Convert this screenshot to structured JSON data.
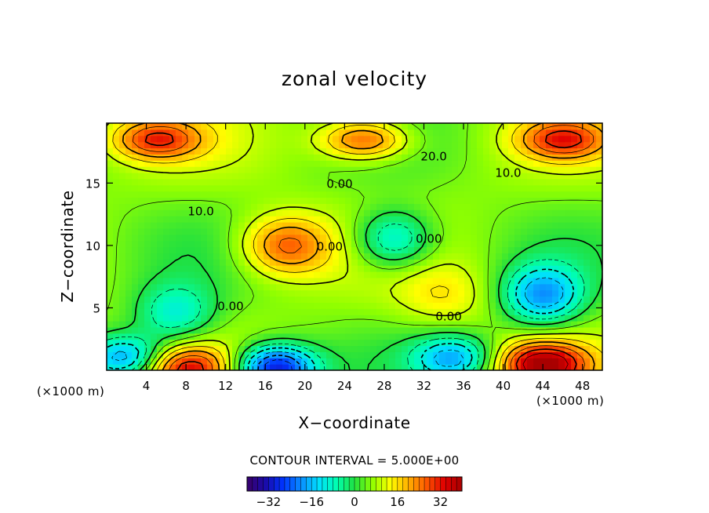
{
  "chart_data": {
    "type": "heatmap",
    "title": "zonal velocity",
    "xlabel": "X−coordinate",
    "ylabel": "Z−coordinate",
    "x_unit_left": "(×1000 m)",
    "x_unit_right": "(×1000 m)",
    "xlim": [
      0,
      50
    ],
    "ylim": [
      0,
      19.8
    ],
    "x_ticks": [
      "4",
      "8",
      "12",
      "16",
      "20",
      "24",
      "28",
      "32",
      "36",
      "40",
      "44",
      "48"
    ],
    "y_ticks": [
      "5",
      "10",
      "15"
    ],
    "x_tick_values": [
      4,
      8,
      12,
      16,
      20,
      24,
      28,
      32,
      36,
      40,
      44,
      48
    ],
    "y_tick_values": [
      5,
      10,
      15
    ],
    "contour_labels": [
      "20.0",
      "10.0",
      "0.00",
      "10.0",
      "0.00",
      "0.00",
      "0.00",
      "0.00"
    ],
    "contour_interval_text": "CONTOUR INTERVAL = 5.000E+00",
    "colorbar": {
      "range": [
        -40,
        40
      ],
      "ticks": [
        "−32",
        "−16",
        "0",
        "16",
        "32"
      ],
      "tick_values": [
        -32,
        -16,
        0,
        16,
        32
      ],
      "colors": [
        "#3a006a",
        "#1a0aa8",
        "#0033ff",
        "#0a8cff",
        "#00e0ff",
        "#00ffb0",
        "#20e040",
        "#90ff00",
        "#ffff00",
        "#ffb000",
        "#ff5a00",
        "#e00000",
        "#a80000"
      ]
    },
    "field_features": [
      {
        "kind": "max",
        "x": 18,
        "z": 10,
        "value": 27
      },
      {
        "kind": "max",
        "x": 44,
        "z": 0.5,
        "value": 38
      },
      {
        "kind": "max",
        "x": 8,
        "z": 0.2,
        "value": 30
      },
      {
        "kind": "max",
        "x": 5,
        "z": 18.5,
        "value": 28
      },
      {
        "kind": "max",
        "x": 26,
        "z": 18.5,
        "value": 30
      },
      {
        "kind": "max",
        "x": 46,
        "z": 18.5,
        "value": 28
      },
      {
        "kind": "max",
        "x": 34,
        "z": 6,
        "value": 14
      },
      {
        "kind": "min",
        "x": 17,
        "z": 0.2,
        "value": -32
      },
      {
        "kind": "min",
        "x": 2,
        "z": 1,
        "value": -20
      },
      {
        "kind": "min",
        "x": 7,
        "z": 4.5,
        "value": -10
      },
      {
        "kind": "min",
        "x": 29,
        "z": 10.5,
        "value": -14
      },
      {
        "kind": "min",
        "x": 44,
        "z": 6,
        "value": -18
      },
      {
        "kind": "min",
        "x": 35,
        "z": 1,
        "value": -16
      }
    ]
  }
}
